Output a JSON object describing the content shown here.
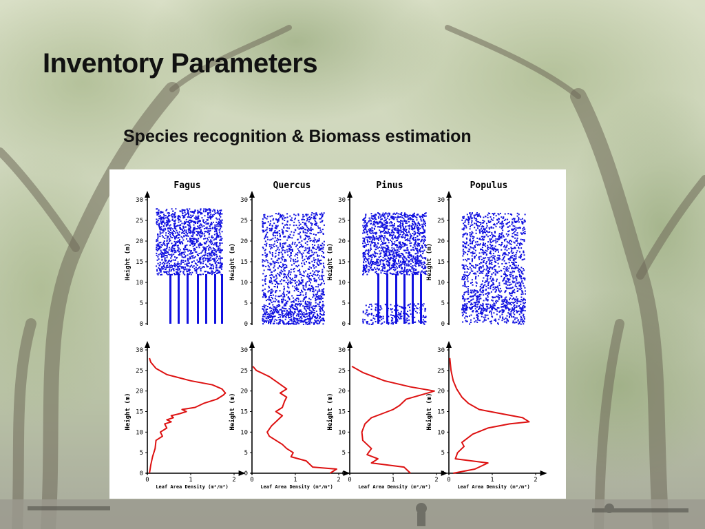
{
  "slide": {
    "title": "Inventory Parameters",
    "subtitle": "Species recognition & Biomass estimation"
  },
  "colors": {
    "point_cloud": "#1010e0",
    "profile_line": "#dd1111",
    "axis": "#000000"
  },
  "chart_data": [
    {
      "type": "line",
      "panel": "profile",
      "species": "Fagus",
      "title": "Fagus",
      "xlabel": "Leaf Area Density (m²/m³)",
      "ylabel": "Height (m)",
      "xlim": [
        0,
        2
      ],
      "ylim": [
        0,
        30
      ],
      "xticks": [
        "0",
        "1",
        "2"
      ],
      "yticks": [
        "0",
        "5",
        "10",
        "15",
        "20",
        "25",
        "30"
      ],
      "series": [
        {
          "x": [
            0.05,
            0.08,
            0.12,
            0.18,
            0.2,
            0.35,
            0.3,
            0.45,
            0.4,
            0.55,
            0.45,
            0.6,
            0.55,
            0.75,
            0.9,
            0.8,
            1.1,
            1.3,
            1.6,
            1.75,
            1.8,
            1.72,
            1.5,
            1.0,
            0.45,
            0.2,
            0.08,
            0.05
          ],
          "y": [
            0,
            2,
            4,
            6,
            8,
            9,
            10,
            11,
            12,
            12.5,
            13,
            13.5,
            14,
            14.5,
            15,
            15.5,
            16,
            17,
            18,
            19,
            19.5,
            20.5,
            21.5,
            22.5,
            24,
            25.5,
            27,
            28
          ]
        }
      ]
    },
    {
      "type": "line",
      "panel": "profile",
      "species": "Quercus",
      "title": "Quercus",
      "xlabel": "Leaf Area Density (m²/m³)",
      "ylabel": "Height (m)",
      "xlim": [
        0,
        2
      ],
      "ylim": [
        0,
        30
      ],
      "xticks": [
        "0",
        "1",
        "2"
      ],
      "yticks": [
        "0",
        "5",
        "10",
        "15",
        "20",
        "25",
        "30"
      ],
      "series": [
        {
          "x": [
            1.8,
            1.95,
            1.4,
            1.25,
            0.9,
            0.95,
            0.8,
            0.7,
            0.4,
            0.35,
            0.45,
            0.55,
            0.7,
            0.55,
            0.7,
            0.75,
            0.8,
            0.65,
            0.8,
            0.6,
            0.4,
            0.1,
            0.02
          ],
          "y": [
            0,
            1,
            1.5,
            3,
            4,
            5,
            6,
            7,
            9,
            10,
            11.5,
            12.5,
            14,
            15,
            16,
            17.5,
            18.5,
            19.5,
            20.5,
            22,
            23.5,
            25,
            26
          ]
        }
      ]
    },
    {
      "type": "line",
      "panel": "profile",
      "species": "Pinus",
      "title": "Pinus",
      "xlabel": "Leaf Area Density (m²/m³)",
      "ylabel": "Height (m)",
      "xlim": [
        0,
        2
      ],
      "ylim": [
        0,
        30
      ],
      "xticks": [
        "0",
        "1",
        "2"
      ],
      "yticks": [
        "0",
        "5",
        "10",
        "15",
        "20",
        "25",
        "30"
      ],
      "series": [
        {
          "x": [
            1.4,
            1.25,
            0.5,
            0.65,
            0.4,
            0.5,
            0.3,
            0.28,
            0.35,
            0.5,
            0.75,
            1.0,
            1.15,
            1.3,
            1.8,
            1.95,
            1.4,
            0.8,
            0.3,
            0.05
          ],
          "y": [
            0,
            1.5,
            2.5,
            3.5,
            4.5,
            6,
            8,
            10,
            12,
            13.5,
            14.5,
            15.5,
            16.5,
            18,
            19.5,
            20,
            21,
            22.5,
            24.5,
            26
          ]
        }
      ]
    },
    {
      "type": "line",
      "panel": "profile",
      "species": "Populus",
      "title": "Populus",
      "xlabel": "Leaf Area Density (m²/m³)",
      "ylabel": "Height (m)",
      "xlim": [
        0,
        2
      ],
      "ylim": [
        0,
        30
      ],
      "xticks": [
        "0",
        "1",
        "2"
      ],
      "yticks": [
        "0",
        "5",
        "10",
        "15",
        "20",
        "25",
        "30"
      ],
      "series": [
        {
          "x": [
            0.1,
            0.6,
            0.9,
            0.15,
            0.2,
            0.35,
            0.3,
            0.55,
            0.9,
            1.4,
            1.85,
            1.7,
            1.2,
            0.7,
            0.45,
            0.3,
            0.18,
            0.1,
            0.05,
            0.02
          ],
          "y": [
            0,
            1,
            2.5,
            3.5,
            5,
            6.5,
            7.5,
            9.5,
            11,
            12,
            12.5,
            13.5,
            14.5,
            15.5,
            17,
            18.5,
            20.5,
            22.5,
            25,
            28
          ]
        }
      ]
    }
  ]
}
